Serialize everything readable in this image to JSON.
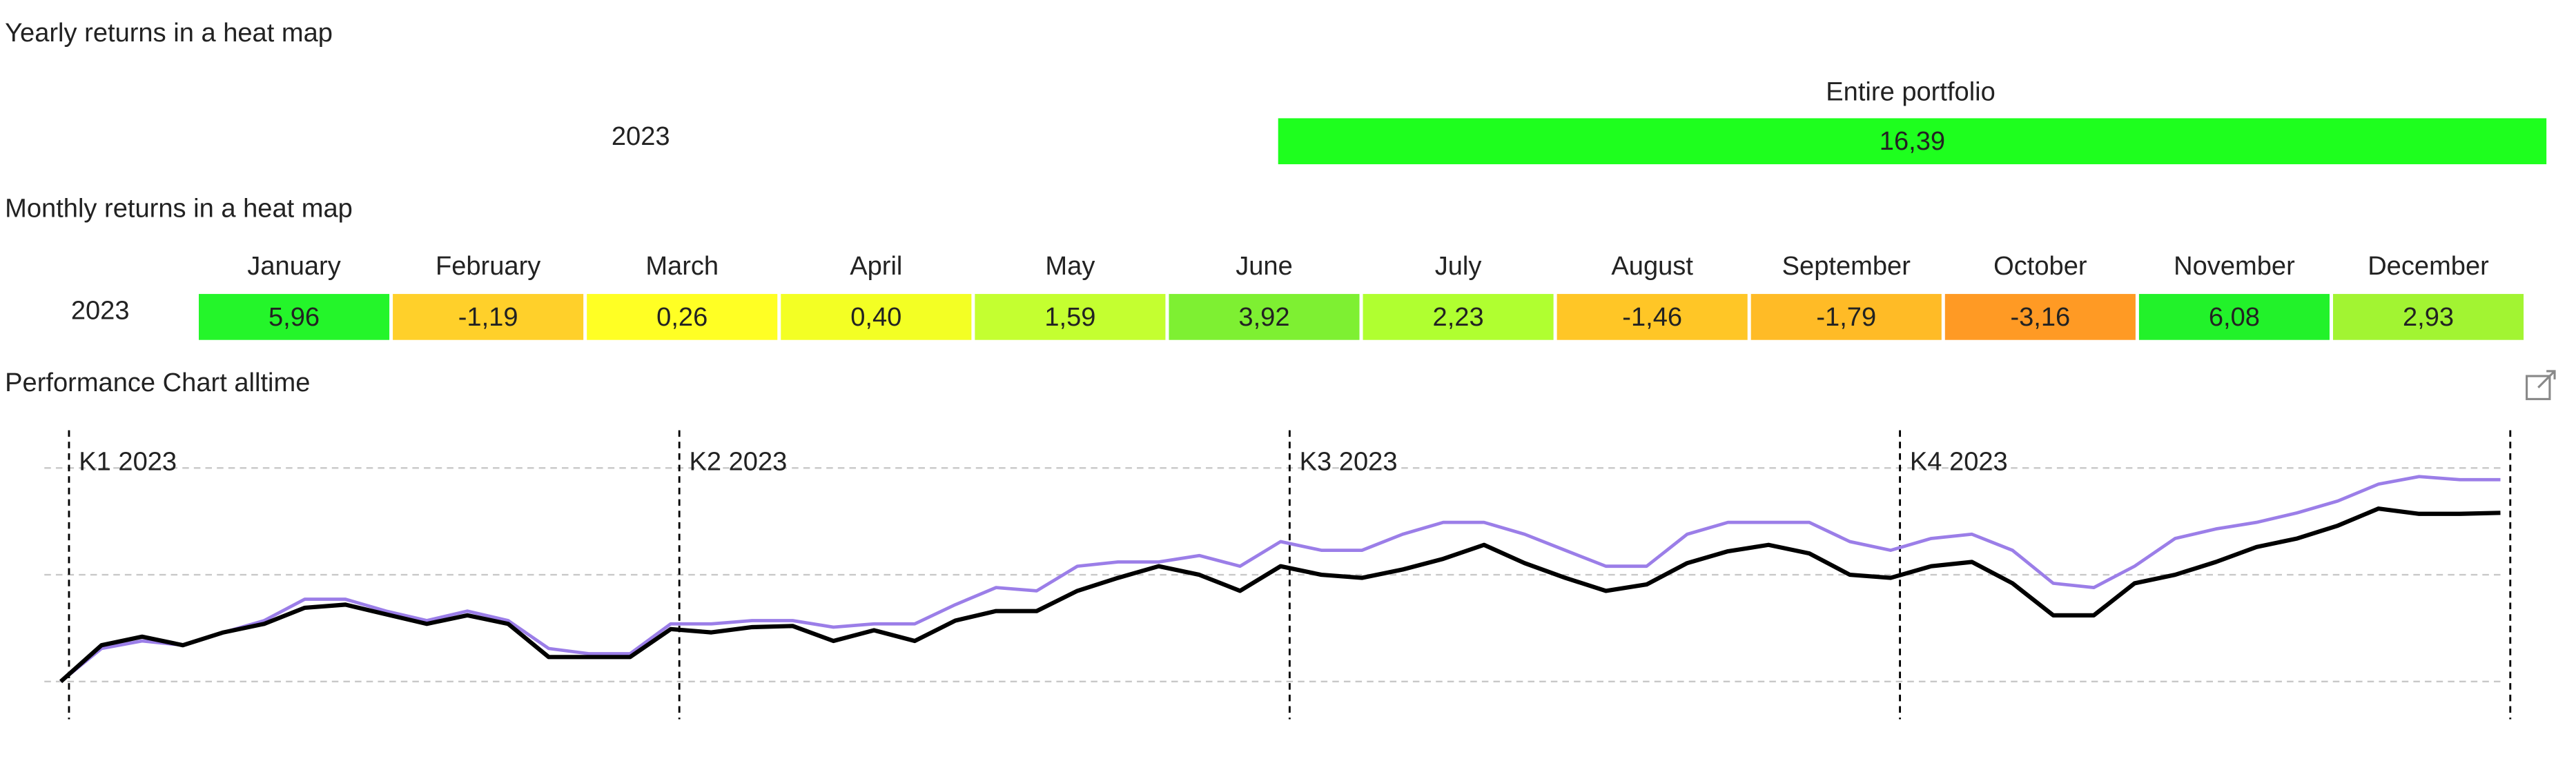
{
  "yearly": {
    "title": "Yearly returns in a heat map",
    "column": "Entire portfolio",
    "year": "2023",
    "value": "16,39",
    "color": "#1eff1e"
  },
  "monthly": {
    "title": "Monthly returns in a heat map",
    "year": "2023",
    "months": [
      "January",
      "February",
      "March",
      "April",
      "May",
      "June",
      "July",
      "August",
      "September",
      "October",
      "November",
      "December"
    ],
    "values": [
      "5,96",
      "-1,19",
      "0,26",
      "0,40",
      "1,59",
      "3,92",
      "2,23",
      "-1,46",
      "-1,79",
      "-3,16",
      "6,08",
      "2,93"
    ],
    "colors": [
      "#24f52a",
      "#ffd02a",
      "#ffff24",
      "#f3ff24",
      "#c4ff30",
      "#7ef032",
      "#b0ff30",
      "#ffc626",
      "#ffbb26",
      "#ff9a24",
      "#22f22a",
      "#a2f432"
    ]
  },
  "performance": {
    "title": "Performance Chart alltime",
    "quarters": [
      "K1 2023",
      "K2 2023",
      "K3 2023",
      "K4 2023"
    ],
    "ylim": [
      -4,
      23
    ],
    "yticks": [
      0,
      10,
      20
    ],
    "grid": true,
    "series": [
      {
        "color": "#9b7ee8",
        "values": [
          0,
          3.1,
          3.8,
          3.4,
          4.6,
          5.7,
          7.7,
          7.7,
          6.6,
          5.7,
          6.6,
          5.7,
          3.1,
          2.6,
          2.6,
          5.4,
          5.4,
          5.7,
          5.7,
          5.1,
          5.4,
          5.4,
          7.2,
          8.8,
          8.5,
          10.8,
          11.2,
          11.2,
          11.8,
          10.8,
          13.1,
          12.3,
          12.3,
          13.8,
          14.9,
          14.9,
          13.8,
          12.3,
          10.8,
          10.8,
          13.8,
          14.9,
          14.9,
          14.9,
          13.1,
          12.3,
          13.4,
          13.8,
          12.3,
          9.2,
          8.8,
          10.8,
          13.4,
          14.3,
          14.9,
          15.8,
          16.9,
          18.5,
          19.2,
          18.9,
          18.9
        ]
      },
      {
        "color": "#000000",
        "values": [
          0,
          3.4,
          4.2,
          3.4,
          4.6,
          5.4,
          6.9,
          7.2,
          6.3,
          5.4,
          6.2,
          5.4,
          2.3,
          2.3,
          2.3,
          4.9,
          4.6,
          5.1,
          5.2,
          3.8,
          4.8,
          3.8,
          5.7,
          6.6,
          6.6,
          8.5,
          9.7,
          10.8,
          10.0,
          8.5,
          10.8,
          10.0,
          9.7,
          10.5,
          11.5,
          12.8,
          11.1,
          9.7,
          8.5,
          9.1,
          11.1,
          12.2,
          12.8,
          12.0,
          10.0,
          9.7,
          10.8,
          11.2,
          9.2,
          6.2,
          6.2,
          9.2,
          10.0,
          11.2,
          12.6,
          13.4,
          14.6,
          16.2,
          15.7,
          15.7,
          15.8
        ]
      }
    ]
  }
}
